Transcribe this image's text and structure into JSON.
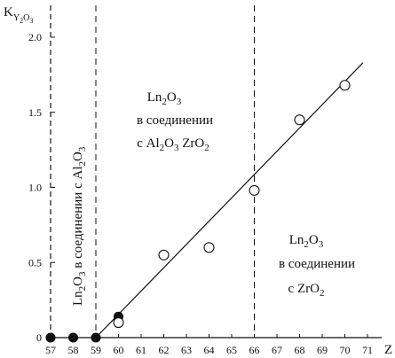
{
  "chart_data": {
    "type": "scatter",
    "ylabel": "K",
    "ylabel_sub": "Y2O3",
    "xlabel": "Z",
    "xlim": [
      57,
      71
    ],
    "ylim": [
      0,
      2.0
    ],
    "x_ticks": [
      "57",
      "58",
      "59",
      "60",
      "61",
      "62",
      "63",
      "64",
      "65",
      "66",
      "67",
      "68",
      "69",
      "70",
      "71"
    ],
    "y_ticks": [
      "0",
      "0.5",
      "1.0",
      "1.5",
      "2.0"
    ],
    "grid": false,
    "vertical_reference_lines": [
      59,
      66
    ],
    "series": [
      {
        "marker": "filled-circle",
        "points": [
          {
            "x": 57,
            "y": 0
          },
          {
            "x": 58,
            "y": 0
          },
          {
            "x": 59,
            "y": 0
          },
          {
            "x": 60,
            "y": 0.14
          }
        ]
      },
      {
        "marker": "open-circle",
        "points": [
          {
            "x": 60,
            "y": 0.1
          },
          {
            "x": 62,
            "y": 0.55
          },
          {
            "x": 64,
            "y": 0.6
          },
          {
            "x": 66,
            "y": 0.98
          },
          {
            "x": 68,
            "y": 1.45
          },
          {
            "x": 70,
            "y": 1.68
          }
        ]
      }
    ],
    "fit_line": {
      "x_start": 59,
      "y_start": 0,
      "x_end": 70.8,
      "y_end": 1.83
    },
    "annotations": [
      {
        "lines": [
          "Ln2O3",
          "в соединении",
          "с Al2O3  ZrO2"
        ]
      },
      {
        "lines": [
          "Ln2O3 в соединении с Al2O3"
        ],
        "rotation": "vertical"
      },
      {
        "lines": [
          "Ln2O3",
          "в соединении",
          "с ZrO2"
        ]
      }
    ]
  }
}
